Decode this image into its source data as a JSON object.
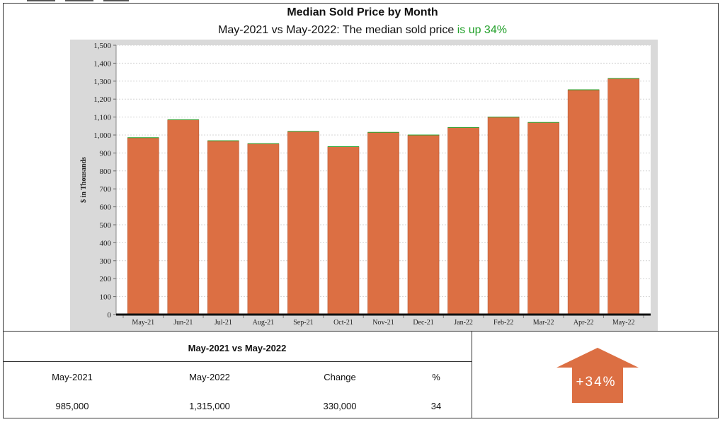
{
  "chart_data": {
    "type": "bar",
    "title": "Median Sold Price by Month",
    "subtitle_prefix": "May-2021 vs May-2022: The median sold price ",
    "subtitle_highlight": "is up 34%",
    "ylabel": "$ in Thousands",
    "xlabel": "",
    "ylim": [
      0,
      1500
    ],
    "yticks": [
      "0",
      "100",
      "200",
      "300",
      "400",
      "500",
      "600",
      "700",
      "800",
      "900",
      "1,000",
      "1,100",
      "1,200",
      "1,300",
      "1,400",
      "1,500"
    ],
    "categories": [
      "May-21",
      "Jun-21",
      "Jul-21",
      "Aug-21",
      "Sep-21",
      "Oct-21",
      "Nov-21",
      "Dec-21",
      "Jan-22",
      "Feb-22",
      "Mar-22",
      "Apr-22",
      "May-22"
    ],
    "values": [
      985,
      1085,
      968,
      952,
      1020,
      935,
      1015,
      1000,
      1042,
      1100,
      1070,
      1252,
      1315
    ],
    "grid": true,
    "bar_color": "#dc6f43",
    "highlight_color": "#22a02a"
  },
  "summary": {
    "title": "May-2021 vs May-2022",
    "headers": [
      "May-2021",
      "May-2022",
      "Change",
      "%"
    ],
    "values": [
      "985,000",
      "1,315,000",
      "330,000",
      "34"
    ],
    "badge": "+34%",
    "badge_color": "#dc6f43",
    "arrow_icon": "up-arrow-icon"
  }
}
